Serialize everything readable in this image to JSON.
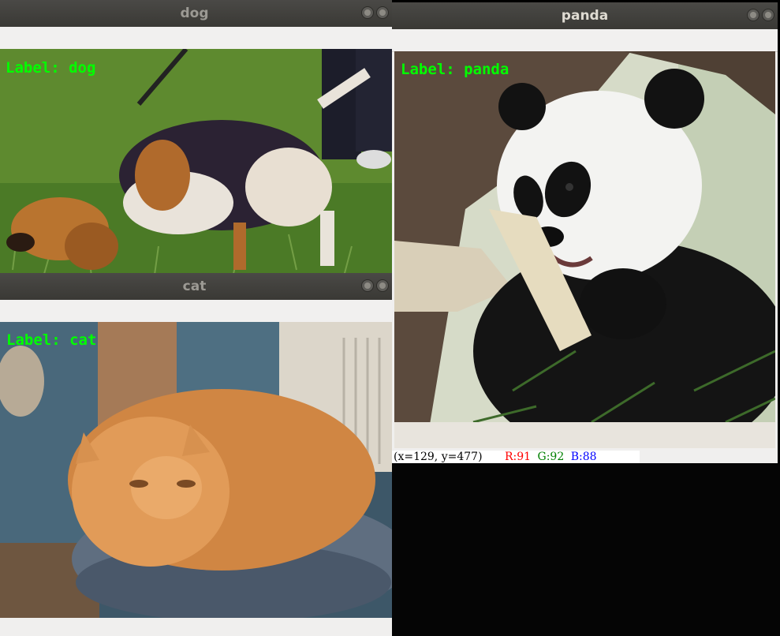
{
  "windows": {
    "dog": {
      "title": "dog",
      "label": "Label: dog"
    },
    "cat": {
      "title": "cat",
      "label": "Label: cat"
    },
    "panda": {
      "title": "panda",
      "label": "Label: panda"
    }
  },
  "status_bar": {
    "coords": "(x=129, y=477)",
    "r": "R:91",
    "g": "G:92",
    "b": "B:88"
  },
  "colors": {
    "label_green": "#00ff00",
    "titlebar": "#3c3b37",
    "status_red": "#ff0000",
    "status_green": "#008000",
    "status_blue": "#0000ff"
  },
  "icons": [
    "window-close-icon",
    "window-minimize-icon"
  ]
}
